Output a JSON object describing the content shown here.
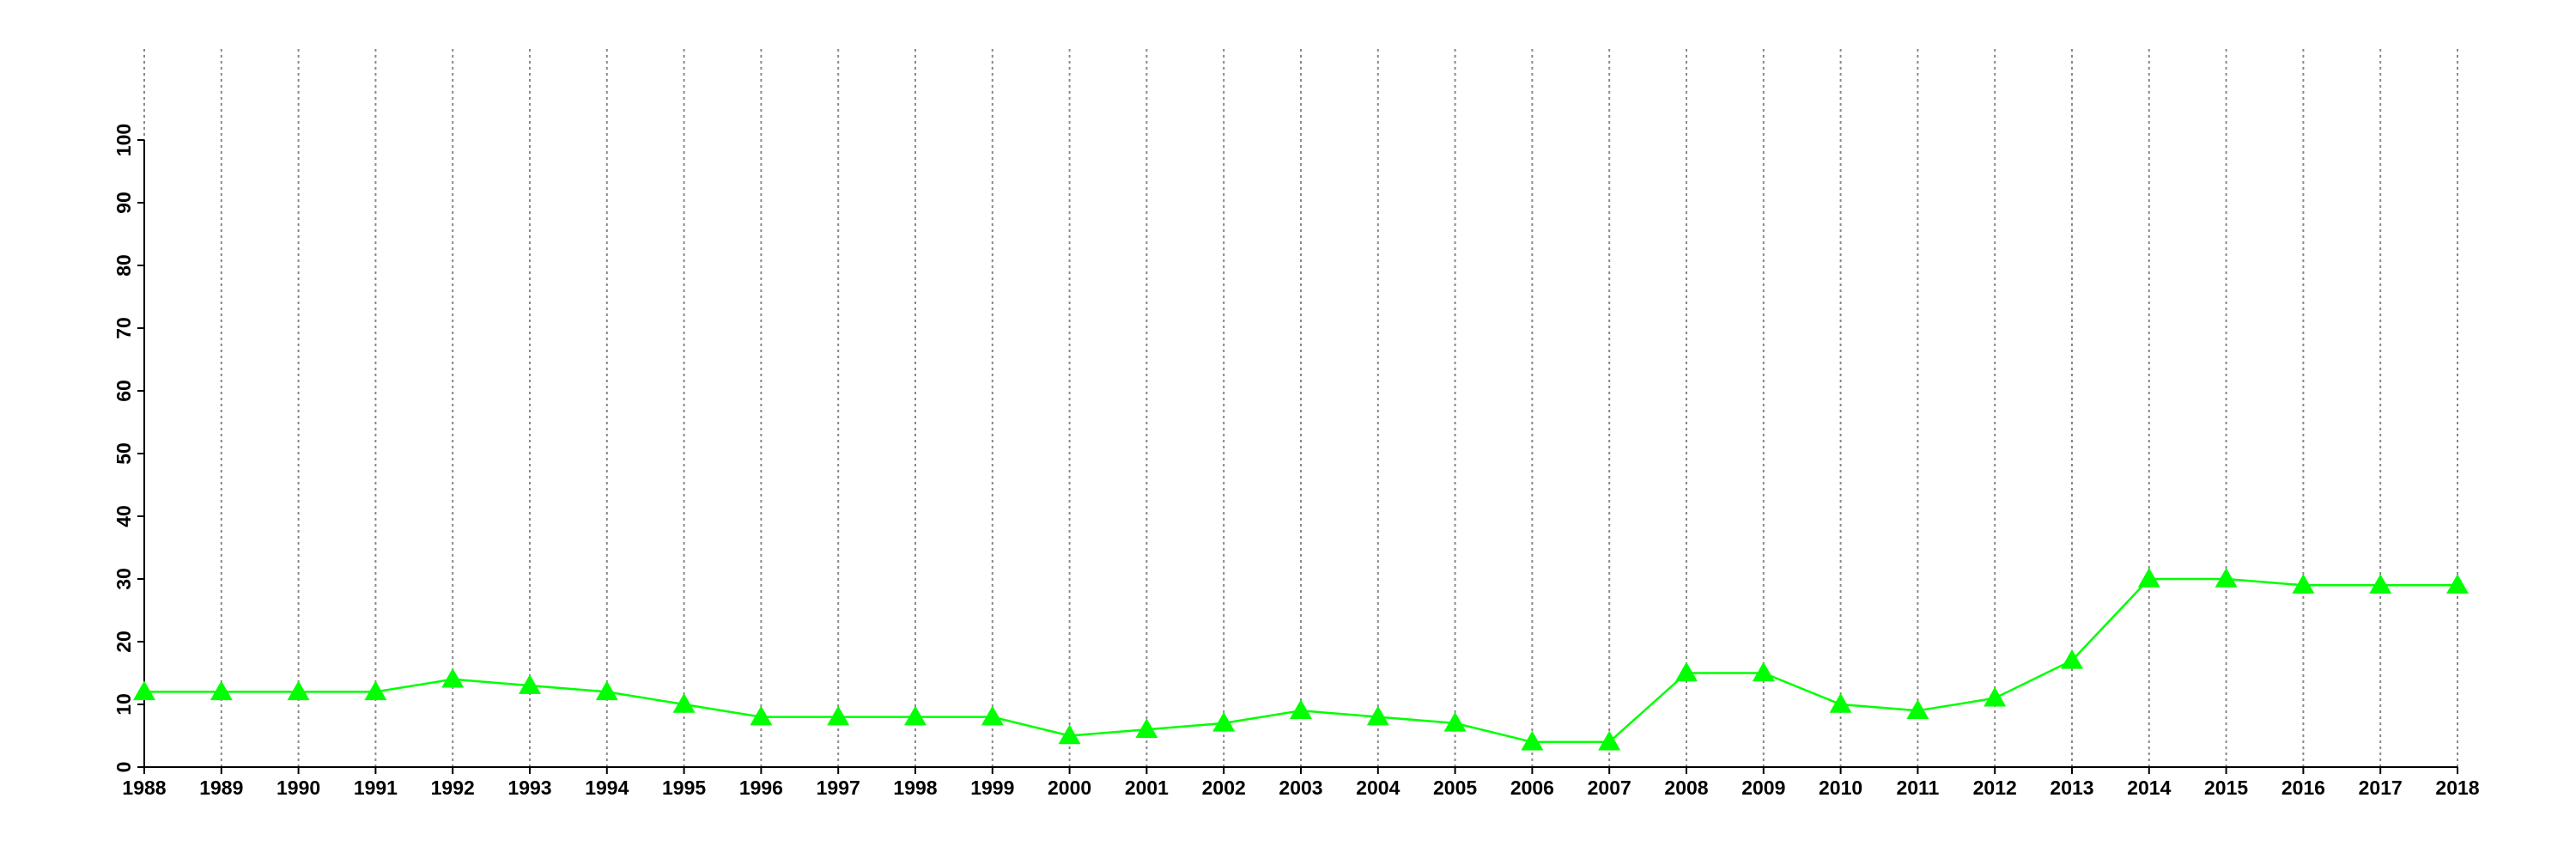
{
  "chart_data": {
    "type": "line",
    "x": [
      1988,
      1989,
      1990,
      1991,
      1992,
      1993,
      1994,
      1995,
      1996,
      1997,
      1998,
      1999,
      2000,
      2001,
      2002,
      2003,
      2004,
      2005,
      2006,
      2007,
      2008,
      2009,
      2010,
      2011,
      2012,
      2013,
      2014,
      2015,
      2016,
      2017,
      2018
    ],
    "series": [
      {
        "color": "#00ff00",
        "marker": "triangle",
        "values": [
          12,
          12,
          12,
          12,
          14,
          13,
          12,
          10,
          8,
          8,
          8,
          8,
          5,
          6,
          7,
          9,
          8,
          7,
          4,
          4,
          15,
          15,
          10,
          9,
          11,
          17,
          30,
          30,
          29,
          29,
          29
        ]
      }
    ],
    "xlim": [
      1988,
      2018
    ],
    "xticks": [
      1988,
      1989,
      1990,
      1991,
      1992,
      1993,
      1994,
      1995,
      1996,
      1997,
      1998,
      1999,
      2000,
      2001,
      2002,
      2003,
      2004,
      2005,
      2006,
      2007,
      2008,
      2009,
      2010,
      2011,
      2012,
      2013,
      2014,
      2015,
      2016,
      2017,
      2018
    ],
    "ylim": [
      0,
      100
    ],
    "yticks": [
      0,
      10,
      20,
      30,
      40,
      50,
      60,
      70,
      80,
      90,
      100
    ],
    "grid": "x"
  }
}
